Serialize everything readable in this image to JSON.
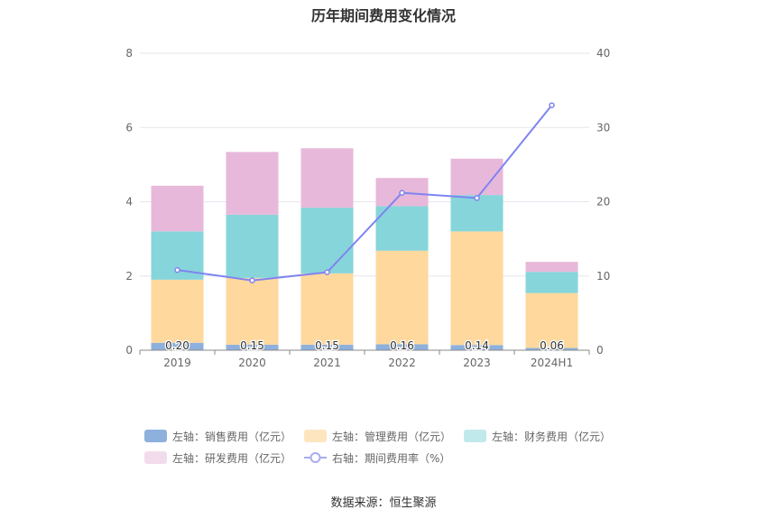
{
  "title": "历年期间费用变化情况",
  "source": "数据来源：恒生聚源",
  "chart_data": {
    "type": "bar",
    "stacked": true,
    "categories": [
      "2019",
      "2020",
      "2021",
      "2022",
      "2023",
      "2024H1"
    ],
    "left_axis": {
      "ylim": [
        0,
        8
      ],
      "ticks": [
        "0",
        "2",
        "4",
        "6",
        "8"
      ]
    },
    "right_axis": {
      "ylim": [
        0,
        40
      ],
      "ticks": [
        "0",
        "10",
        "20",
        "30",
        "40"
      ]
    },
    "series": [
      {
        "name": "左轴：销售费用（亿元）",
        "type": "bar",
        "axis": "left",
        "color": "#8eb0dc",
        "values": [
          0.2,
          0.15,
          0.15,
          0.16,
          0.14,
          0.06
        ],
        "labels": [
          "0.20",
          "0.15",
          "0.15",
          "0.16",
          "0.14",
          "0.06"
        ]
      },
      {
        "name": "左轴：管理费用（亿元）",
        "type": "bar",
        "axis": "left",
        "color": "#fed89d",
        "values": [
          1.7,
          1.8,
          1.92,
          2.52,
          3.06,
          1.48
        ]
      },
      {
        "name": "左轴：财务费用（亿元）",
        "type": "bar",
        "axis": "left",
        "color": "#86d5da",
        "values": [
          1.3,
          1.7,
          1.77,
          1.2,
          0.98,
          0.57
        ]
      },
      {
        "name": "左轴：研发费用（亿元）",
        "type": "bar",
        "axis": "left",
        "color": "#e7b8da",
        "values": [
          1.23,
          1.69,
          1.6,
          0.76,
          0.98,
          0.27
        ]
      },
      {
        "name": "右轴：期间费用率（%）",
        "type": "line",
        "axis": "right",
        "color": "#7f84ef",
        "values": [
          10.8,
          9.4,
          10.5,
          21.2,
          20.5,
          33.0
        ]
      }
    ],
    "grid": true,
    "legend_position": "bottom"
  }
}
